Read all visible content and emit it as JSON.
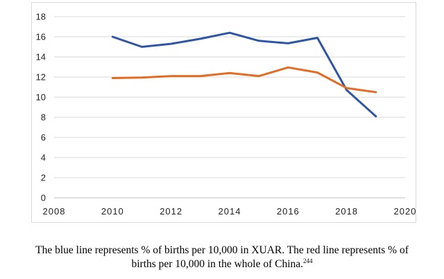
{
  "chart_data": {
    "type": "line",
    "title": "",
    "xlabel": "",
    "ylabel": "",
    "xlim": [
      2008,
      2020
    ],
    "ylim": [
      0,
      18
    ],
    "x_ticks": [
      "2008",
      "2010",
      "2012",
      "2014",
      "2016",
      "2018",
      "2020"
    ],
    "y_ticks": [
      "0",
      "2",
      "4",
      "6",
      "8",
      "10",
      "12",
      "14",
      "16",
      "18"
    ],
    "grid": true,
    "legend": "none",
    "series": [
      {
        "color": "#2f55a4",
        "x": [
          2010,
          2011,
          2012,
          2013,
          2014,
          2015,
          2016,
          2017,
          2018,
          2019
        ],
        "y": [
          16.0,
          15.0,
          15.3,
          15.8,
          16.4,
          15.6,
          15.35,
          15.9,
          10.7,
          8.1
        ]
      },
      {
        "color": "#e36c24",
        "x": [
          2010,
          2011,
          2012,
          2013,
          2014,
          2015,
          2016,
          2017,
          2018,
          2019
        ],
        "y": [
          11.9,
          11.95,
          12.1,
          12.1,
          12.4,
          12.1,
          12.95,
          12.45,
          10.9,
          10.5
        ]
      }
    ]
  },
  "caption": {
    "line1": "The blue line represents % of births per 10,000 in XUAR. The red line represents % of",
    "line2": "births per 10,000 in the whole of China.",
    "footnote": "244"
  }
}
